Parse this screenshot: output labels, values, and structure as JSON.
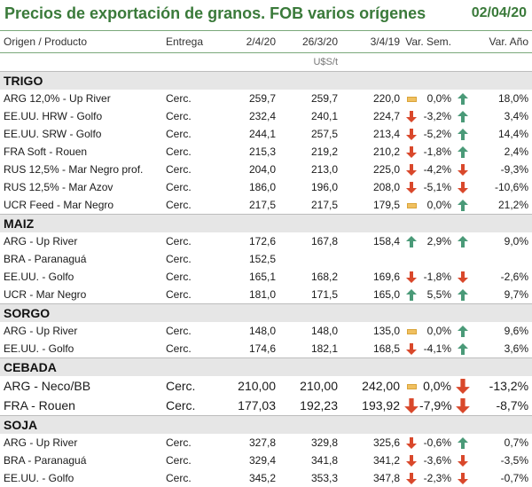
{
  "header": {
    "title": "Precios de exportación de granos. FOB varios orígenes",
    "date": "02/04/20"
  },
  "columns": [
    "Origen / Producto",
    "Entrega",
    "2/4/20",
    "26/3/20",
    "3/4/19",
    "Var. Sem.",
    "Var. Año"
  ],
  "unit": "U$S/t",
  "colors": {
    "title": "#3a7a3a",
    "up": "#4a9a78",
    "down": "#d9482b",
    "flat": "#f0c060",
    "section_bg": "#e6e6e6"
  },
  "sections": [
    {
      "name": "TRIGO",
      "big": false,
      "rows": [
        {
          "name": "ARG 12,0% - Up River",
          "delivery": "Cerc.",
          "p1": "259,7",
          "p2": "259,7",
          "p3": "220,0",
          "i1": "flat",
          "vs": "0,0%",
          "i2": "up",
          "va": "18,0%"
        },
        {
          "name": "EE.UU. HRW - Golfo",
          "delivery": "Cerc.",
          "p1": "232,4",
          "p2": "240,1",
          "p3": "224,7",
          "i1": "down",
          "vs": "-3,2%",
          "i2": "up",
          "va": "3,4%"
        },
        {
          "name": "EE.UU. SRW - Golfo",
          "delivery": "Cerc.",
          "p1": "244,1",
          "p2": "257,5",
          "p3": "213,4",
          "i1": "down",
          "vs": "-5,2%",
          "i2": "up",
          "va": "14,4%"
        },
        {
          "name": "FRA Soft - Rouen",
          "delivery": "Cerc.",
          "p1": "215,3",
          "p2": "219,2",
          "p3": "210,2",
          "i1": "down",
          "vs": "-1,8%",
          "i2": "up",
          "va": "2,4%"
        },
        {
          "name": "RUS 12,5% - Mar Negro prof.",
          "delivery": "Cerc.",
          "p1": "204,0",
          "p2": "213,0",
          "p3": "225,0",
          "i1": "down",
          "vs": "-4,2%",
          "i2": "down",
          "va": "-9,3%"
        },
        {
          "name": "RUS 12,5% - Mar Azov",
          "delivery": "Cerc.",
          "p1": "186,0",
          "p2": "196,0",
          "p3": "208,0",
          "i1": "down",
          "vs": "-5,1%",
          "i2": "down",
          "va": "-10,6%"
        },
        {
          "name": "UCR Feed - Mar Negro",
          "delivery": "Cerc.",
          "p1": "217,5",
          "p2": "217,5",
          "p3": "179,5",
          "i1": "flat",
          "vs": "0,0%",
          "i2": "up",
          "va": "21,2%"
        }
      ]
    },
    {
      "name": "MAIZ",
      "big": false,
      "rows": [
        {
          "name": "ARG - Up River",
          "delivery": "Cerc.",
          "p1": "172,6",
          "p2": "167,8",
          "p3": "158,4",
          "i1": "up",
          "vs": "2,9%",
          "i2": "up",
          "va": "9,0%"
        },
        {
          "name": "BRA - Paranaguá",
          "delivery": "Cerc.",
          "p1": "152,5",
          "p2": "",
          "p3": "",
          "i1": "",
          "vs": "",
          "i2": "",
          "va": ""
        },
        {
          "name": "EE.UU. - Golfo",
          "delivery": "Cerc.",
          "p1": "165,1",
          "p2": "168,2",
          "p3": "169,6",
          "i1": "down",
          "vs": "-1,8%",
          "i2": "down",
          "va": "-2,6%"
        },
        {
          "name": "UCR - Mar Negro",
          "delivery": "Cerc.",
          "p1": "181,0",
          "p2": "171,5",
          "p3": "165,0",
          "i1": "up",
          "vs": "5,5%",
          "i2": "up",
          "va": "9,7%"
        }
      ]
    },
    {
      "name": "SORGO",
      "big": false,
      "rows": [
        {
          "name": "ARG - Up River",
          "delivery": "Cerc.",
          "p1": "148,0",
          "p2": "148,0",
          "p3": "135,0",
          "i1": "flat",
          "vs": "0,0%",
          "i2": "up",
          "va": "9,6%"
        },
        {
          "name": "EE.UU. - Golfo",
          "delivery": "Cerc.",
          "p1": "174,6",
          "p2": "182,1",
          "p3": "168,5",
          "i1": "down",
          "vs": "-4,1%",
          "i2": "up",
          "va": "3,6%"
        }
      ]
    },
    {
      "name": "CEBADA",
      "big": true,
      "rows": [
        {
          "name": "ARG - Neco/BB",
          "delivery": "Cerc.",
          "p1": "210,00",
          "p2": "210,00",
          "p3": "242,00",
          "i1": "flat",
          "vs": "0,0%",
          "i2": "down",
          "va": "-13,2%"
        },
        {
          "name": "FRA - Rouen",
          "delivery": "Cerc.",
          "p1": "177,03",
          "p2": "192,23",
          "p3": "193,92",
          "i1": "down",
          "vs": "-7,9%",
          "i2": "down",
          "va": "-8,7%"
        }
      ]
    },
    {
      "name": "SOJA",
      "big": false,
      "rows": [
        {
          "name": "ARG - Up River",
          "delivery": "Cerc.",
          "p1": "327,8",
          "p2": "329,8",
          "p3": "325,6",
          "i1": "down",
          "vs": "-0,6%",
          "i2": "up",
          "va": "0,7%"
        },
        {
          "name": "BRA - Paranaguá",
          "delivery": "Cerc.",
          "p1": "329,4",
          "p2": "341,8",
          "p3": "341,2",
          "i1": "down",
          "vs": "-3,6%",
          "i2": "down",
          "va": "-3,5%"
        },
        {
          "name": "EE.UU. - Golfo",
          "delivery": "Cerc.",
          "p1": "345,2",
          "p2": "353,3",
          "p3": "347,8",
          "i1": "down",
          "vs": "-2,3%",
          "i2": "down",
          "va": "-0,7%"
        }
      ]
    }
  ]
}
